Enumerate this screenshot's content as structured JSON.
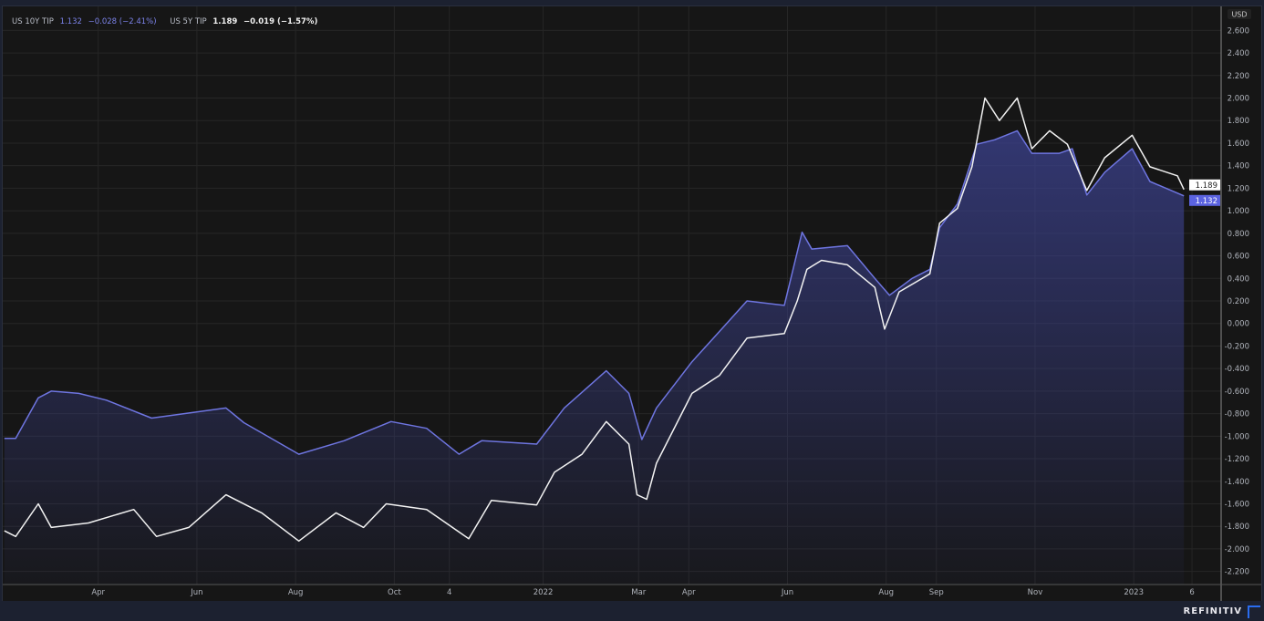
{
  "legend": {
    "series": [
      {
        "name": "US 10Y TIP",
        "value": "1.132",
        "change": "−0.028 (−2.41%)",
        "color": "#6e75e0"
      },
      {
        "name": "US 5Y TIP",
        "value": "1.189",
        "change": "−0.019 (−1.57%)",
        "color": "#f2f2f2"
      }
    ]
  },
  "brand": "REFINITIV",
  "chart_data": {
    "type": "line",
    "currency_label": "USD",
    "ylim": [
      -2.3,
      2.7
    ],
    "yticks": [
      2.6,
      2.4,
      2.2,
      2.0,
      1.8,
      1.6,
      1.4,
      1.2,
      1.0,
      0.8,
      0.6,
      0.4,
      0.2,
      0.0,
      -0.2,
      -0.4,
      -0.6,
      -0.8,
      -1.0,
      -1.2,
      -1.4,
      -1.6,
      -1.8,
      -2.0,
      -2.2
    ],
    "ytick_labels": [
      "2.600",
      "2.400",
      "2.200",
      "2.000",
      "1.800",
      "1.600",
      "1.400",
      "1.200",
      "1.000",
      "0.800",
      "0.600",
      "0.400",
      "0.200",
      "0.000",
      "-0.200",
      "-0.400",
      "-0.600",
      "-0.800",
      "-1.000",
      "-1.200",
      "-1.400",
      "-1.600",
      "-1.800",
      "-2.000",
      "-2.200"
    ],
    "xticks": [
      {
        "date": "2021-04-01",
        "label": "Apr"
      },
      {
        "date": "2021-06-01",
        "label": "Jun"
      },
      {
        "date": "2021-08-01",
        "label": "Aug"
      },
      {
        "date": "2021-10-01",
        "label": "Oct"
      },
      {
        "date": "2021-11-04",
        "label": "4"
      },
      {
        "date": "2022-01-01",
        "label": "2022"
      },
      {
        "date": "2022-03-01",
        "label": "Mar"
      },
      {
        "date": "2022-04-01",
        "label": "Apr"
      },
      {
        "date": "2022-06-01",
        "label": "Jun"
      },
      {
        "date": "2022-08-01",
        "label": "Aug"
      },
      {
        "date": "2022-09-01",
        "label": "Sep"
      },
      {
        "date": "2022-11-01",
        "label": "Nov"
      },
      {
        "date": "2023-01-01",
        "label": "2023"
      },
      {
        "date": "2023-02-06",
        "label": "6"
      }
    ],
    "xlim": [
      "2021-02-01",
      "2023-02-24"
    ],
    "grid": true,
    "series": [
      {
        "name": "US 10Y TIP",
        "color": "#6e75e0",
        "fill": true,
        "last_label": "1.132",
        "points": [
          [
            "2021-02-02",
            -1.02
          ],
          [
            "2021-02-09",
            -1.02
          ],
          [
            "2021-02-23",
            -0.66
          ],
          [
            "2021-03-03",
            -0.6
          ],
          [
            "2021-03-20",
            -0.62
          ],
          [
            "2021-04-06",
            -0.68
          ],
          [
            "2021-05-04",
            -0.84
          ],
          [
            "2021-06-19",
            -0.75
          ],
          [
            "2021-06-30",
            -0.88
          ],
          [
            "2021-08-03",
            -1.16
          ],
          [
            "2021-08-31",
            -1.04
          ],
          [
            "2021-09-29",
            -0.87
          ],
          [
            "2021-10-21",
            -0.93
          ],
          [
            "2021-11-10",
            -1.16
          ],
          [
            "2021-11-24",
            -1.04
          ],
          [
            "2021-12-28",
            -1.07
          ],
          [
            "2022-01-14",
            -0.75
          ],
          [
            "2022-02-09",
            -0.42
          ],
          [
            "2022-02-23",
            -0.62
          ],
          [
            "2022-03-03",
            -1.03
          ],
          [
            "2022-03-12",
            -0.75
          ],
          [
            "2022-04-03",
            -0.34
          ],
          [
            "2022-04-20",
            -0.07
          ],
          [
            "2022-05-07",
            0.2
          ],
          [
            "2022-05-30",
            0.16
          ],
          [
            "2022-06-10",
            0.81
          ],
          [
            "2022-06-16",
            0.66
          ],
          [
            "2022-07-08",
            0.69
          ],
          [
            "2022-07-25",
            0.4
          ],
          [
            "2022-08-03",
            0.25
          ],
          [
            "2022-08-17",
            0.4
          ],
          [
            "2022-08-28",
            0.48
          ],
          [
            "2022-09-03",
            0.85
          ],
          [
            "2022-09-14",
            1.06
          ],
          [
            "2022-09-26",
            1.59
          ],
          [
            "2022-10-07",
            1.63
          ],
          [
            "2022-10-21",
            1.71
          ],
          [
            "2022-10-30",
            1.51
          ],
          [
            "2022-11-16",
            1.51
          ],
          [
            "2022-11-24",
            1.55
          ],
          [
            "2022-12-03",
            1.14
          ],
          [
            "2022-12-14",
            1.34
          ],
          [
            "2022-12-31",
            1.55
          ],
          [
            "2023-01-11",
            1.26
          ],
          [
            "2023-02-01",
            1.132
          ]
        ]
      },
      {
        "name": "US 5Y TIP",
        "color": "#f2f2f2",
        "fill": false,
        "last_label": "1.189",
        "points": [
          [
            "2021-02-02",
            -1.84
          ],
          [
            "2021-02-09",
            -1.89
          ],
          [
            "2021-02-23",
            -1.6
          ],
          [
            "2021-03-03",
            -1.81
          ],
          [
            "2021-03-26",
            -1.77
          ],
          [
            "2021-04-23",
            -1.65
          ],
          [
            "2021-05-07",
            -1.89
          ],
          [
            "2021-05-27",
            -1.81
          ],
          [
            "2021-06-19",
            -1.52
          ],
          [
            "2021-07-11",
            -1.68
          ],
          [
            "2021-08-03",
            -1.93
          ],
          [
            "2021-08-26",
            -1.68
          ],
          [
            "2021-09-12",
            -1.81
          ],
          [
            "2021-09-26",
            -1.6
          ],
          [
            "2021-10-21",
            -1.65
          ],
          [
            "2021-11-16",
            -1.91
          ],
          [
            "2021-11-30",
            -1.57
          ],
          [
            "2021-12-28",
            -1.61
          ],
          [
            "2022-01-08",
            -1.32
          ],
          [
            "2022-01-25",
            -1.16
          ],
          [
            "2022-02-09",
            -0.87
          ],
          [
            "2022-02-23",
            -1.07
          ],
          [
            "2022-02-28",
            -1.52
          ],
          [
            "2022-03-06",
            -1.56
          ],
          [
            "2022-03-12",
            -1.24
          ],
          [
            "2022-04-03",
            -0.62
          ],
          [
            "2022-04-20",
            -0.46
          ],
          [
            "2022-05-07",
            -0.13
          ],
          [
            "2022-05-30",
            -0.09
          ],
          [
            "2022-06-07",
            0.2
          ],
          [
            "2022-06-13",
            0.48
          ],
          [
            "2022-06-22",
            0.56
          ],
          [
            "2022-07-08",
            0.52
          ],
          [
            "2022-07-25",
            0.32
          ],
          [
            "2022-07-31",
            -0.05
          ],
          [
            "2022-08-09",
            0.28
          ],
          [
            "2022-08-28",
            0.44
          ],
          [
            "2022-09-03",
            0.89
          ],
          [
            "2022-09-14",
            1.02
          ],
          [
            "2022-09-23",
            1.39
          ],
          [
            "2022-10-01",
            2.0
          ],
          [
            "2022-10-10",
            1.8
          ],
          [
            "2022-10-21",
            2.0
          ],
          [
            "2022-10-30",
            1.55
          ],
          [
            "2022-11-10",
            1.71
          ],
          [
            "2022-11-21",
            1.59
          ],
          [
            "2022-12-03",
            1.18
          ],
          [
            "2022-12-14",
            1.47
          ],
          [
            "2022-12-31",
            1.67
          ],
          [
            "2023-01-11",
            1.39
          ],
          [
            "2023-01-28",
            1.31
          ],
          [
            "2023-02-01",
            1.189
          ]
        ]
      }
    ]
  }
}
